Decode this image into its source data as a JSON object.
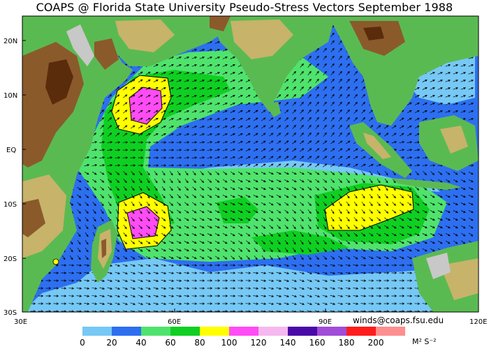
{
  "title": "COAPS @ Florida State University Pseudo-Stress Vectors  September 1988",
  "credit": "winds@coaps.fsu.edu",
  "units": "M² S⁻²",
  "lat_labels": [
    "20N",
    "10N",
    "EQ",
    "10S",
    "20S",
    "30S"
  ],
  "lon_labels": [
    "30E",
    "60E",
    "90E",
    "120E"
  ],
  "legend": {
    "ticks": [
      "0",
      "20",
      "40",
      "60",
      "80",
      "100",
      "120",
      "140",
      "160",
      "180",
      "200"
    ],
    "colors": [
      "#76c8f5",
      "#2d6ff0",
      "#4fe36d",
      "#0fcf22",
      "#ffff00",
      "#ff4cf5",
      "#f6b8ef",
      "#4a0aa7",
      "#a14cd8",
      "#ff1c1c",
      "#fe8f8f"
    ]
  },
  "colors": {
    "ocean_low": "#76c8f5",
    "ocean_mid": "#2d6ff0",
    "ocean_green_light": "#4fe36d",
    "ocean_green": "#0fcf22",
    "yellow": "#ffff00",
    "magenta": "#ff4cf5",
    "land_green": "#5aba52",
    "land_brown": "#8b5a2b",
    "land_dark": "#5a2c0c",
    "land_tan": "#c7b36a",
    "land_gray": "#c8c8c8"
  }
}
